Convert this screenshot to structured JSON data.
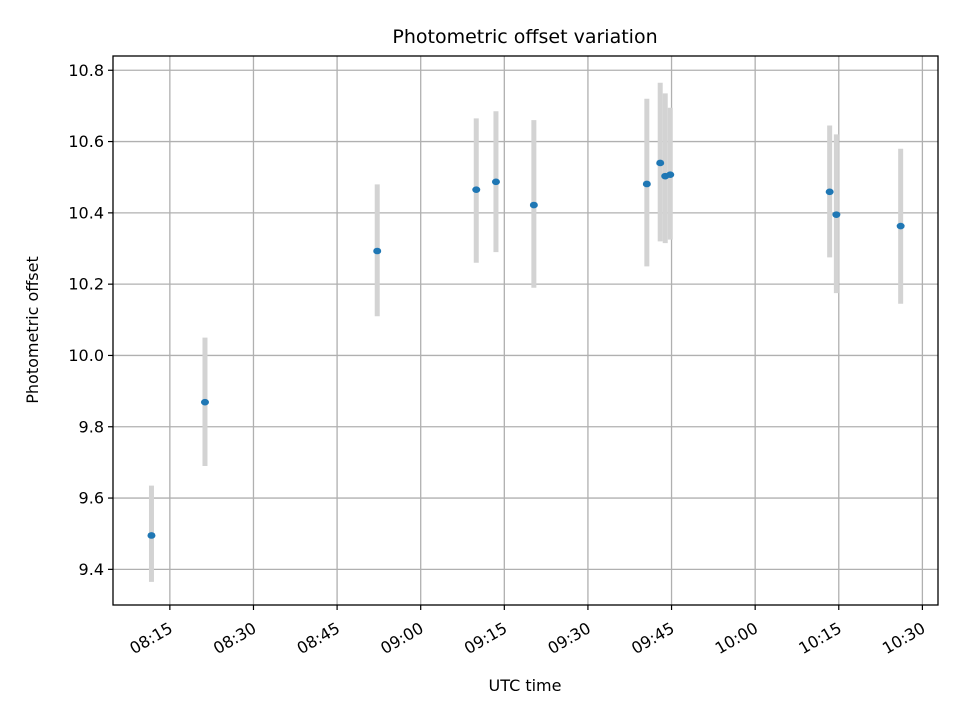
{
  "chart_data": {
    "type": "scatter",
    "title": "Photometric offset variation",
    "xlabel": "UTC time",
    "ylabel": "Photometric offset",
    "grid": true,
    "x_ticks": [
      "08:15",
      "08:30",
      "08:45",
      "09:00",
      "09:15",
      "09:30",
      "09:45",
      "10:00",
      "10:15",
      "10:30"
    ],
    "y_ticks": [
      "9.4",
      "9.6",
      "9.8",
      "10.0",
      "10.2",
      "10.4",
      "10.6",
      "10.8"
    ],
    "xlim": [
      "08:04:48",
      "10:32:48"
    ],
    "ylim": [
      9.3,
      10.84
    ],
    "colors": {
      "point": "#1f77b4",
      "errorbar": "#d3d3d3",
      "grid": "#b0b0b0"
    },
    "points": [
      {
        "x": "08:11:42",
        "y": 9.495,
        "ylow": 9.365,
        "yhigh": 9.635
      },
      {
        "x": "08:21:18",
        "y": 9.869,
        "ylow": 9.69,
        "yhigh": 10.05
      },
      {
        "x": "08:52:12",
        "y": 10.293,
        "ylow": 10.11,
        "yhigh": 10.48
      },
      {
        "x": "09:09:58",
        "y": 10.465,
        "ylow": 10.26,
        "yhigh": 10.665
      },
      {
        "x": "09:13:30",
        "y": 10.487,
        "ylow": 10.29,
        "yhigh": 10.685
      },
      {
        "x": "09:20:18",
        "y": 10.422,
        "ylow": 10.19,
        "yhigh": 10.66
      },
      {
        "x": "09:40:34",
        "y": 10.481,
        "ylow": 10.25,
        "yhigh": 10.72
      },
      {
        "x": "09:42:58",
        "y": 10.54,
        "ylow": 10.32,
        "yhigh": 10.765
      },
      {
        "x": "09:43:52",
        "y": 10.503,
        "ylow": 10.315,
        "yhigh": 10.735
      },
      {
        "x": "09:44:46",
        "y": 10.507,
        "ylow": 10.325,
        "yhigh": 10.695
      },
      {
        "x": "10:13:22",
        "y": 10.459,
        "ylow": 10.275,
        "yhigh": 10.645
      },
      {
        "x": "10:14:34",
        "y": 10.395,
        "ylow": 10.175,
        "yhigh": 10.62
      },
      {
        "x": "10:26:06",
        "y": 10.363,
        "ylow": 10.145,
        "yhigh": 10.58
      }
    ]
  }
}
